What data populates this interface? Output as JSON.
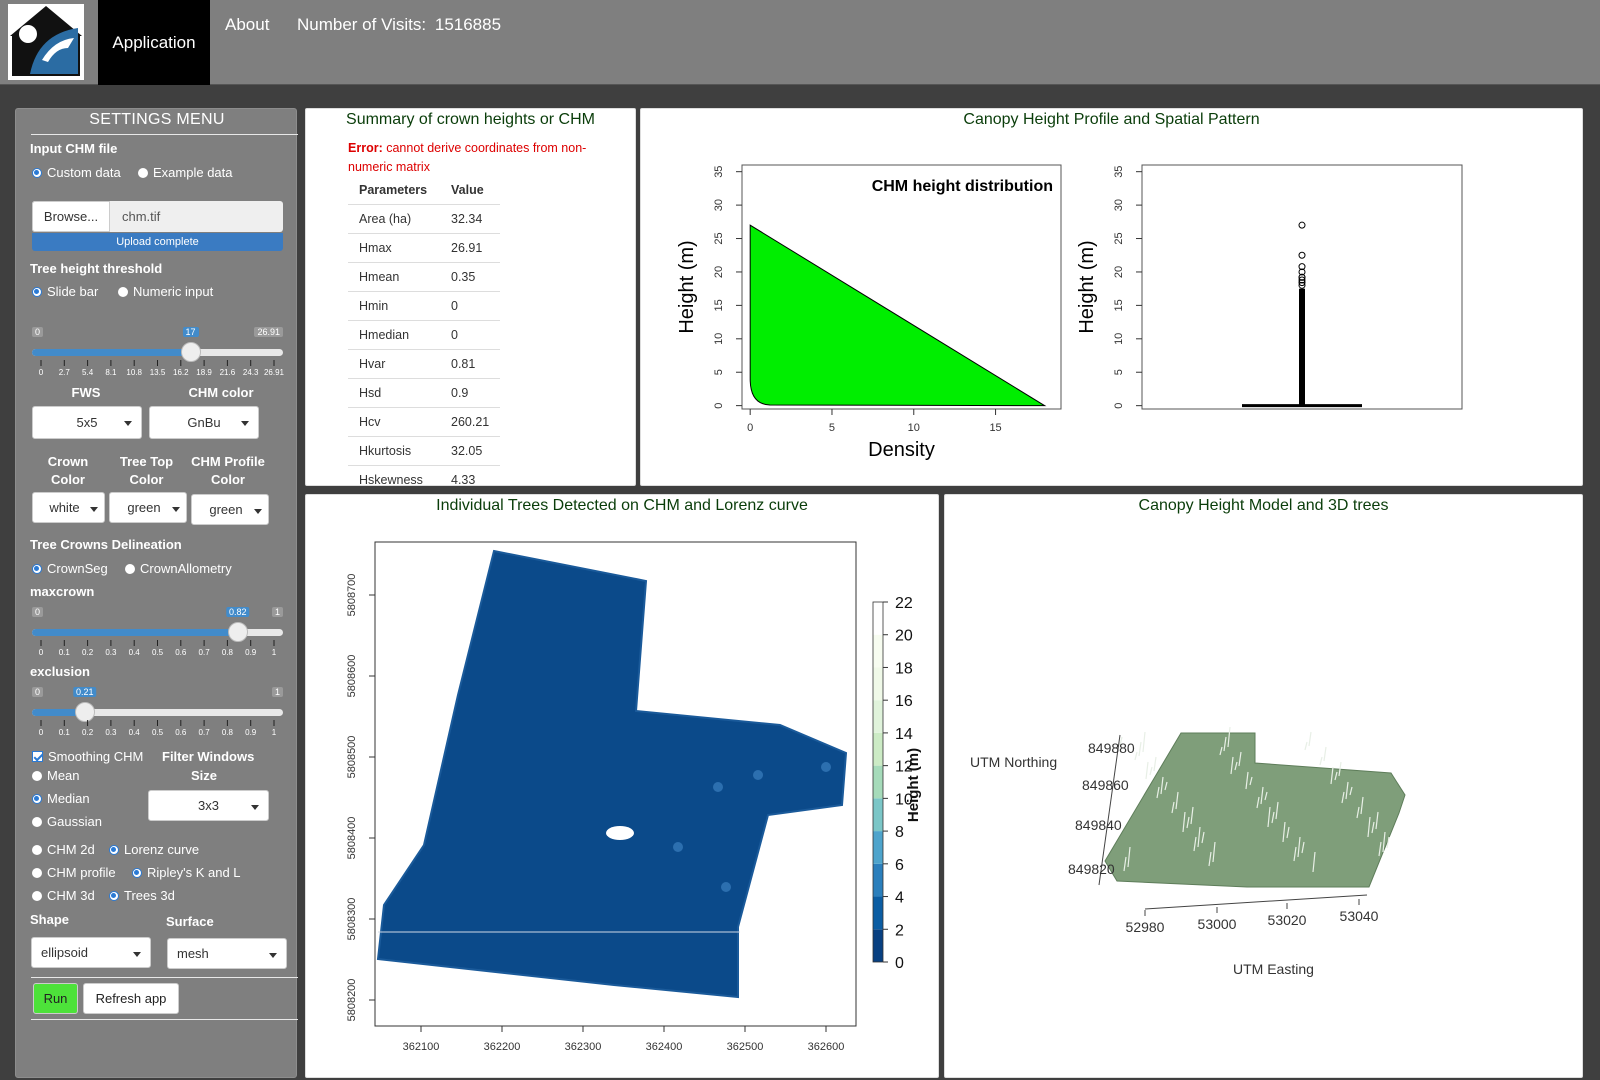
{
  "nav": {
    "tab_application": "Application",
    "tab_about": "About",
    "visits_label": "Number of Visits:",
    "visits_count": "1516885"
  },
  "sidebar": {
    "title": "SETTINGS MENU",
    "input_chm_label": "Input CHM file",
    "radio_custom": "Custom data",
    "radio_example": "Example data",
    "browse_label": "Browse...",
    "file_name": "chm.tif",
    "upload_status": "Upload complete",
    "tree_height_label": "Tree height threshold",
    "radio_slidebar": "Slide bar",
    "radio_numeric": "Numeric input",
    "height_slider": {
      "min": "0",
      "max": "26.91",
      "value": "17",
      "value_num": 17,
      "min_num": 0,
      "max_num": 26.91,
      "ticks": [
        "0",
        "2.7",
        "5.4",
        "8.1",
        "10.8",
        "13.5",
        "16.2",
        "18.9",
        "21.6",
        "24.3",
        "26.91"
      ]
    },
    "fws_label": "FWS",
    "fws_value": "5x5",
    "chm_color_label": "CHM color",
    "chm_color_value": "GnBu",
    "crown_color_label": "Crown Color",
    "treetop_color_label": "Tree Top Color",
    "chm_profile_color_label": "CHM Profile Color",
    "crown_color_value": "white",
    "treetop_color_value": "green",
    "chm_profile_color_value": "green",
    "delineation_label": "Tree Crowns Delineation",
    "radio_crownseg": "CrownSeg",
    "radio_crownallometry": "CrownAllometry",
    "maxcrown_label": "maxcrown",
    "maxcrown_slider": {
      "min": "0",
      "max": "1",
      "value": "0.82",
      "value_num": 0.82,
      "min_num": 0,
      "max_num": 1,
      "ticks": [
        "0",
        "0.1",
        "0.2",
        "0.3",
        "0.4",
        "0.5",
        "0.6",
        "0.7",
        "0.8",
        "0.9",
        "1"
      ]
    },
    "exclusion_label": "exclusion",
    "exclusion_slider": {
      "min": "0",
      "max": "1",
      "value": "0.21",
      "value_num": 0.21,
      "min_num": 0,
      "max_num": 1,
      "ticks": [
        "0",
        "0.1",
        "0.2",
        "0.3",
        "0.4",
        "0.5",
        "0.6",
        "0.7",
        "0.8",
        "0.9",
        "1"
      ]
    },
    "smoothing_label": "Smoothing CHM",
    "filter_windows_label": "Filter Windows",
    "size_label": "Size",
    "radio_mean": "Mean",
    "radio_median": "Median",
    "radio_gaussian": "Gaussian",
    "filter_size_value": "3x3",
    "radio_chm2d": "CHM 2d",
    "radio_lorenz": "Lorenz curve",
    "radio_chmprofile": "CHM profile",
    "radio_ripley": "Ripley's K and L",
    "radio_chm3d": "CHM 3d",
    "radio_trees3d": "Trees 3d",
    "shape_label": "Shape",
    "shape_value": "ellipsoid",
    "surface_label": "Surface",
    "surface_value": "mesh",
    "run_label": "Run",
    "refresh_label": "Refresh app"
  },
  "summary_panel": {
    "title": "Summary of crown heights or CHM",
    "error_prefix": "Error:",
    "error_message": "cannot derive coordinates from non-numeric matrix",
    "col_param": "Parameters",
    "col_value": "Value",
    "rows": [
      {
        "param": "Area (ha)",
        "value": "32.34"
      },
      {
        "param": "Hmax",
        "value": "26.91"
      },
      {
        "param": "Hmean",
        "value": "0.35"
      },
      {
        "param": "Hmin",
        "value": "0"
      },
      {
        "param": "Hmedian",
        "value": "0"
      },
      {
        "param": "Hvar",
        "value": "0.81"
      },
      {
        "param": "Hsd",
        "value": "0.9"
      },
      {
        "param": "Hcv",
        "value": "260.21"
      },
      {
        "param": "Hkurtosis",
        "value": "32.05"
      },
      {
        "param": "Hskewness",
        "value": "4.33"
      }
    ]
  },
  "profile_panel": {
    "title": "Canopy Height Profile and Spatial Pattern",
    "density_title": "CHM height distribution",
    "ylabel": "Height (m)",
    "xlabel": "Density",
    "y_ticks": [
      "0",
      "5",
      "10",
      "15",
      "20",
      "25",
      "30",
      "35"
    ],
    "x_ticks": [
      "0",
      "5",
      "10",
      "15"
    ],
    "fill_color": "#00ee00"
  },
  "trees_panel": {
    "title": "Individual Trees Detected on CHM and Lorenz curve",
    "x_ticks": [
      "362100",
      "362200",
      "362300",
      "362400",
      "362500",
      "362600"
    ],
    "y_ticks": [
      "5808200",
      "5808300",
      "5808400",
      "5808500",
      "5808600",
      "5808700"
    ],
    "legend_ticks": [
      "0",
      "2",
      "4",
      "6",
      "8",
      "10",
      "12",
      "14",
      "16",
      "18",
      "20",
      "22"
    ],
    "legend_label": "Height (m)",
    "chm_color": "#0b4a8a"
  },
  "model3d_panel": {
    "title": "Canopy Height Model and 3D trees",
    "northing_label": "UTM Northing",
    "easting_label": "UTM Easting",
    "northing_ticks": [
      "849880",
      "849860",
      "849840",
      "849820"
    ],
    "easting_ticks": [
      "52980",
      "53000",
      "53020",
      "53040"
    ],
    "surface_color": "#7f9e7a"
  },
  "chart_data": [
    {
      "type": "area",
      "title": "CHM height distribution",
      "xlabel": "Density",
      "ylabel": "Height (m)",
      "xlim": [
        -0.5,
        19
      ],
      "ylim": [
        -0.5,
        36
      ],
      "series": [
        {
          "points": [
            [
              0,
              27
            ],
            [
              0,
              2
            ],
            [
              1,
              0.5
            ],
            [
              18,
              0
            ]
          ]
        }
      ]
    },
    {
      "type": "box",
      "ylabel": "Height (m)",
      "ylim": [
        -0.5,
        36
      ],
      "median": 0,
      "outliers": [
        27,
        22.5,
        20.8,
        20,
        19.2
      ]
    }
  ]
}
